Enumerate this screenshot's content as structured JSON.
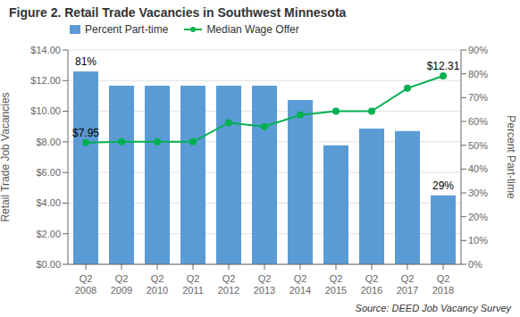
{
  "chart_data": {
    "type": "bar",
    "title": "Figure 2. Retail Trade Vacancies in Southwest Minnesota",
    "categories": [
      "Q2\n2008",
      "Q2\n2009",
      "Q2\n2010",
      "Q2\n2011",
      "Q2\n2012",
      "Q2\n2013",
      "Q2\n2014",
      "Q2\n2015",
      "Q2\n2016",
      "Q2\n2017",
      "Q2\n2018"
    ],
    "series": [
      {
        "name": "Percent Part-time",
        "type": "bar",
        "color": "#5b9bd5",
        "values": [
          12.6,
          11.67,
          11.67,
          11.67,
          11.67,
          11.67,
          10.73,
          7.78,
          8.87,
          8.71,
          4.51
        ]
      },
      {
        "name": "Median Wage Offer",
        "type": "line",
        "color": "#00b050",
        "marker": "circle",
        "values": [
          7.95,
          8.0,
          8.0,
          8.0,
          9.25,
          9.0,
          9.75,
          10.0,
          10.0,
          11.5,
          12.31
        ]
      }
    ],
    "ylabel": "Retail Trade Job Vacancies",
    "y2label": "Percent Part-time",
    "ylim": [
      0,
      14.0
    ],
    "yticks": [
      {
        "value": 0,
        "label": "$0.00"
      },
      {
        "value": 2,
        "label": "$2.00"
      },
      {
        "value": 4,
        "label": "$4.00"
      },
      {
        "value": 6,
        "label": "$6.00"
      },
      {
        "value": 8,
        "label": "$8.00"
      },
      {
        "value": 10,
        "label": "$10.00"
      },
      {
        "value": 12,
        "label": "$12.00"
      },
      {
        "value": 14,
        "label": "$14.00"
      }
    ],
    "y2lim": [
      0,
      0.9
    ],
    "y2ticks": [
      {
        "value": 0,
        "label": "0%"
      },
      {
        "value": 0.1,
        "label": "10%"
      },
      {
        "value": 0.2,
        "label": "20%"
      },
      {
        "value": 0.3,
        "label": "30%"
      },
      {
        "value": 0.4,
        "label": "40%"
      },
      {
        "value": 0.5,
        "label": "50%"
      },
      {
        "value": 0.6,
        "label": "60%"
      },
      {
        "value": 0.7,
        "label": "70%"
      },
      {
        "value": 0.8,
        "label": "80%"
      },
      {
        "value": 0.9,
        "label": "90%"
      }
    ],
    "grid": true,
    "legend": "top left",
    "annotations": [
      {
        "text": "81%",
        "category": "Q2\n2008",
        "series": "Percent Part-time"
      },
      {
        "text": "29%",
        "category": "Q2\n2018",
        "series": "Percent Part-time"
      },
      {
        "text": "$7.95",
        "category": "Q2\n2008",
        "series": "Median Wage Offer"
      },
      {
        "text": "$12.31",
        "category": "Q2\n2018",
        "series": "Median Wage Offer"
      }
    ],
    "source": "Source: DEED Job Vacancy Survey"
  }
}
